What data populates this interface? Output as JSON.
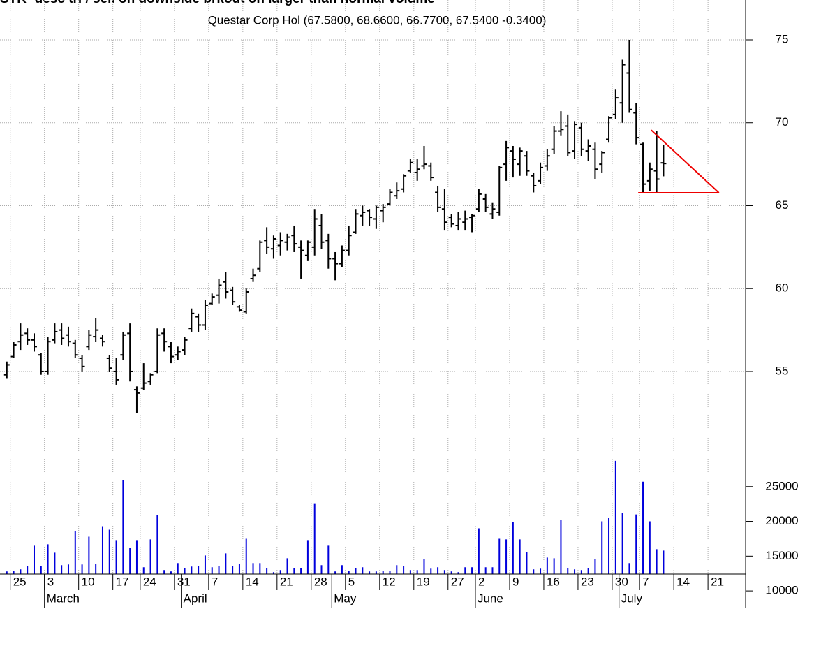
{
  "chart_data": [
    {
      "type": "ohlc",
      "title": "STR- desc tri / sell on downside brkout on larger than normal volume",
      "legend": "Questar Corp Hol (67.5800, 68.6600, 66.7700, 67.5400 -0.3400)",
      "color": "#000000",
      "open": [
        54.8,
        55.9,
        56.8,
        57.3,
        56.9,
        56.0,
        55.0,
        56.9,
        57.5,
        57.2,
        56.7,
        55.8,
        56.5,
        57.1,
        57.0,
        55.8,
        55.0,
        56.0,
        57.3,
        53.9,
        54.0,
        54.4,
        55.0,
        57.3,
        56.5,
        56.0,
        56.3,
        57.6,
        58.3,
        57.8,
        59.1,
        59.6,
        60.4,
        59.9,
        58.9,
        58.6,
        60.6,
        61.2,
        62.9,
        62.4,
        62.6,
        62.8,
        63.2,
        62.5,
        62.0,
        62.5,
        63.8,
        62.9,
        61.8,
        61.5,
        62.3,
        63.4,
        64.4,
        64.7,
        64.2,
        64.7,
        65.1,
        65.6,
        66.0,
        67.1,
        67.0,
        67.4,
        67.4,
        65.8,
        64.8,
        64.3,
        63.8,
        64.0,
        64.3,
        64.8,
        65.4,
        64.5,
        64.6,
        67.5,
        68.3,
        67.5,
        68.0,
        66.8,
        66.5,
        67.4,
        68.4,
        69.5,
        69.8,
        68.3,
        69.7,
        68.3,
        68.4,
        67.5,
        69.0,
        70.5,
        71.2,
        73.0,
        70.6,
        68.7,
        66.5,
        67.1,
        67.58
      ],
      "high": [
        55.6,
        56.8,
        57.9,
        57.6,
        57.3,
        56.1,
        57.1,
        57.9,
        57.9,
        57.7,
        56.9,
        56.0,
        57.5,
        58.2,
        57.2,
        56.0,
        55.8,
        57.4,
        57.9,
        54.1,
        55.5,
        54.9,
        57.6,
        57.6,
        56.8,
        56.5,
        57.1,
        58.8,
        58.5,
        59.3,
        59.7,
        60.6,
        61.0,
        60.1,
        59.0,
        60.0,
        61.2,
        62.9,
        63.7,
        63.2,
        63.4,
        63.3,
        63.8,
        62.9,
        62.9,
        64.8,
        64.5,
        63.3,
        62.2,
        62.6,
        63.8,
        64.8,
        65.0,
        64.8,
        65.0,
        65.1,
        66.0,
        66.4,
        66.9,
        67.8,
        67.8,
        68.6,
        67.6,
        66.2,
        66.0,
        64.5,
        64.6,
        64.7,
        64.5,
        66.0,
        65.7,
        65.2,
        67.4,
        68.9,
        68.6,
        68.5,
        68.3,
        67.0,
        67.6,
        68.4,
        69.8,
        70.7,
        70.5,
        70.1,
        70.0,
        69.0,
        68.8,
        68.3,
        70.4,
        72.0,
        73.8,
        75.0,
        71.2,
        68.8,
        67.6,
        69.5,
        68.66
      ],
      "low": [
        54.6,
        55.8,
        56.3,
        56.6,
        56.2,
        54.8,
        54.8,
        56.7,
        56.6,
        56.5,
        55.8,
        55.0,
        56.3,
        56.8,
        56.5,
        55.0,
        54.2,
        55.7,
        54.4,
        52.5,
        53.9,
        54.2,
        54.9,
        56.2,
        55.5,
        55.7,
        56.0,
        57.4,
        57.4,
        57.5,
        59.0,
        59.1,
        59.4,
        59.0,
        58.6,
        58.5,
        60.4,
        61.0,
        62.1,
        61.8,
        62.0,
        62.3,
        62.2,
        60.6,
        61.7,
        62.0,
        62.4,
        61.2,
        60.5,
        61.3,
        62.0,
        63.3,
        63.8,
        63.8,
        63.6,
        64.0,
        65.0,
        65.4,
        65.8,
        67.0,
        66.5,
        67.2,
        66.5,
        64.6,
        63.5,
        63.7,
        63.5,
        63.5,
        63.4,
        64.6,
        64.6,
        64.2,
        64.4,
        66.5,
        66.7,
        66.8,
        66.8,
        65.8,
        66.3,
        67.1,
        68.1,
        69.2,
        68.0,
        67.8,
        68.0,
        67.7,
        66.6,
        67.0,
        68.8,
        70.2,
        70.0,
        70.6,
        68.7,
        65.8,
        65.9,
        65.8,
        66.77
      ],
      "close": [
        55.4,
        56.6,
        57.2,
        56.9,
        56.5,
        55.0,
        56.8,
        57.4,
        57.0,
        56.8,
        56.0,
        55.3,
        57.2,
        57.5,
        56.8,
        55.2,
        54.5,
        57.2,
        55.0,
        53.7,
        54.3,
        54.8,
        57.2,
        56.8,
        55.9,
        56.2,
        56.9,
        58.5,
        57.8,
        59.0,
        59.5,
        60.2,
        59.8,
        59.2,
        58.7,
        59.8,
        60.8,
        62.8,
        62.5,
        63.0,
        62.9,
        63.1,
        62.7,
        62.3,
        62.8,
        64.2,
        62.8,
        61.8,
        61.5,
        62.3,
        63.2,
        64.5,
        64.6,
        64.3,
        64.9,
        64.9,
        65.8,
        65.9,
        66.8,
        67.6,
        67.2,
        67.5,
        66.7,
        64.9,
        64.0,
        63.9,
        64.2,
        64.2,
        64.4,
        65.7,
        64.9,
        64.8,
        67.3,
        68.5,
        67.8,
        68.3,
        67.1,
        66.2,
        67.3,
        68.0,
        69.5,
        69.6,
        68.2,
        69.9,
        68.4,
        68.6,
        67.2,
        68.2,
        70.3,
        71.5,
        73.5,
        70.8,
        69.1,
        66.3,
        67.2,
        66.6,
        67.54
      ],
      "xlim": [
        -1,
        108
      ],
      "xticks": [
        {
          "value": 0.5,
          "label": "25"
        },
        {
          "value": 5.5,
          "label": "3"
        },
        {
          "value": 10.5,
          "label": "10"
        },
        {
          "value": 15.5,
          "label": "17"
        },
        {
          "value": 19.5,
          "label": "24"
        },
        {
          "value": 24.5,
          "label": "31"
        },
        {
          "value": 29.5,
          "label": "7"
        },
        {
          "value": 34.5,
          "label": "14"
        },
        {
          "value": 39.5,
          "label": "21"
        },
        {
          "value": 44.5,
          "label": "28"
        },
        {
          "value": 49.5,
          "label": "5"
        },
        {
          "value": 54.5,
          "label": "12"
        },
        {
          "value": 59.5,
          "label": "19"
        },
        {
          "value": 64.5,
          "label": "27"
        },
        {
          "value": 68.5,
          "label": "2"
        },
        {
          "value": 73.5,
          "label": "9"
        },
        {
          "value": 78.5,
          "label": "16"
        },
        {
          "value": 83.5,
          "label": "23"
        },
        {
          "value": 88.5,
          "label": "30"
        },
        {
          "value": 92.5,
          "label": "7"
        },
        {
          "value": 97.5,
          "label": "14"
        },
        {
          "value": 102.5,
          "label": "21"
        }
      ],
      "month_ticks": [
        {
          "value": 5.5,
          "label": "March"
        },
        {
          "value": 25.5,
          "label": "April"
        },
        {
          "value": 47.5,
          "label": "May"
        },
        {
          "value": 68.5,
          "label": "June"
        },
        {
          "value": 89.5,
          "label": "July"
        }
      ],
      "ylim": [
        50.24,
        77.4
      ],
      "yticks": [
        55,
        60,
        65,
        70,
        75
      ],
      "grid": true,
      "annotations": [
        {
          "color": "#ee0000",
          "x": [
            92.3,
            104.1
          ],
          "y": [
            65.78,
            65.78
          ]
        },
        {
          "color": "#ee0000",
          "x": [
            94.2,
            104.1
          ],
          "y": [
            69.56,
            65.78
          ]
        }
      ]
    },
    {
      "type": "bar",
      "color": "#0000dd",
      "values": [
        12800,
        12900,
        13100,
        13600,
        16500,
        13600,
        16700,
        15500,
        13700,
        13800,
        18600,
        13800,
        17800,
        13900,
        19300,
        18800,
        17300,
        25900,
        16200,
        17300,
        13400,
        17400,
        20900,
        13000,
        12800,
        14000,
        13300,
        13500,
        13600,
        15100,
        13400,
        13600,
        15400,
        13600,
        13900,
        17500,
        14000,
        14000,
        13300,
        12700,
        13000,
        14700,
        13300,
        13300,
        17300,
        22600,
        13700,
        16500,
        12800,
        13700,
        12900,
        13300,
        13400,
        12800,
        12800,
        12900,
        12900,
        13700,
        13600,
        13000,
        13000,
        14600,
        13200,
        13400,
        13000,
        12800,
        12700,
        13400,
        13400,
        19000,
        13400,
        13400,
        17500,
        17400,
        19900,
        17400,
        15600,
        13100,
        13200,
        14800,
        14700,
        20200,
        13300,
        13100,
        13000,
        13300,
        14600,
        20000,
        20500,
        28700,
        21200,
        14000,
        21000,
        25700,
        20000,
        16000,
        15800
      ],
      "xlim": [
        -1,
        108
      ],
      "ylim": [
        7600,
        30200
      ],
      "yticks": [
        10000,
        15000,
        20000,
        25000
      ],
      "grid": "x"
    }
  ]
}
